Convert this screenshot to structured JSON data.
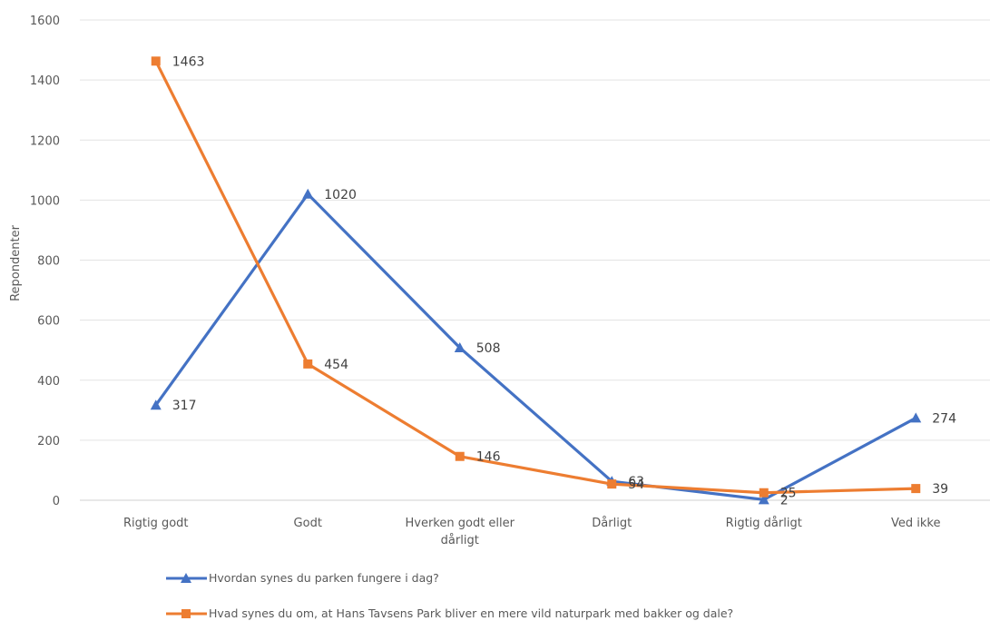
{
  "chart_data": {
    "type": "line",
    "title": "",
    "xlabel": "",
    "ylabel": "Repondenter",
    "ylim": [
      0,
      1600
    ],
    "yticks": [
      0,
      200,
      400,
      600,
      800,
      1000,
      1200,
      1400,
      1600
    ],
    "grid": true,
    "legend_position": "bottom",
    "categories": [
      [
        "Rigtig godt"
      ],
      [
        "Godt"
      ],
      [
        "Hverken godt eller",
        "dårligt"
      ],
      [
        "Dårligt"
      ],
      [
        "Rigtig dårligt"
      ],
      [
        "Ved ikke"
      ]
    ],
    "series": [
      {
        "name": "Hvordan synes du parken fungere i dag?",
        "color": "#4472C4",
        "marker": "triangle",
        "values": [
          317,
          1020,
          508,
          63,
          2,
          274
        ]
      },
      {
        "name": "Hvad synes du om, at Hans Tavsens Park bliver en mere vild naturpark med bakker og dale?",
        "color": "#ED7D31",
        "marker": "square",
        "values": [
          1463,
          454,
          146,
          54,
          25,
          39
        ]
      }
    ]
  }
}
